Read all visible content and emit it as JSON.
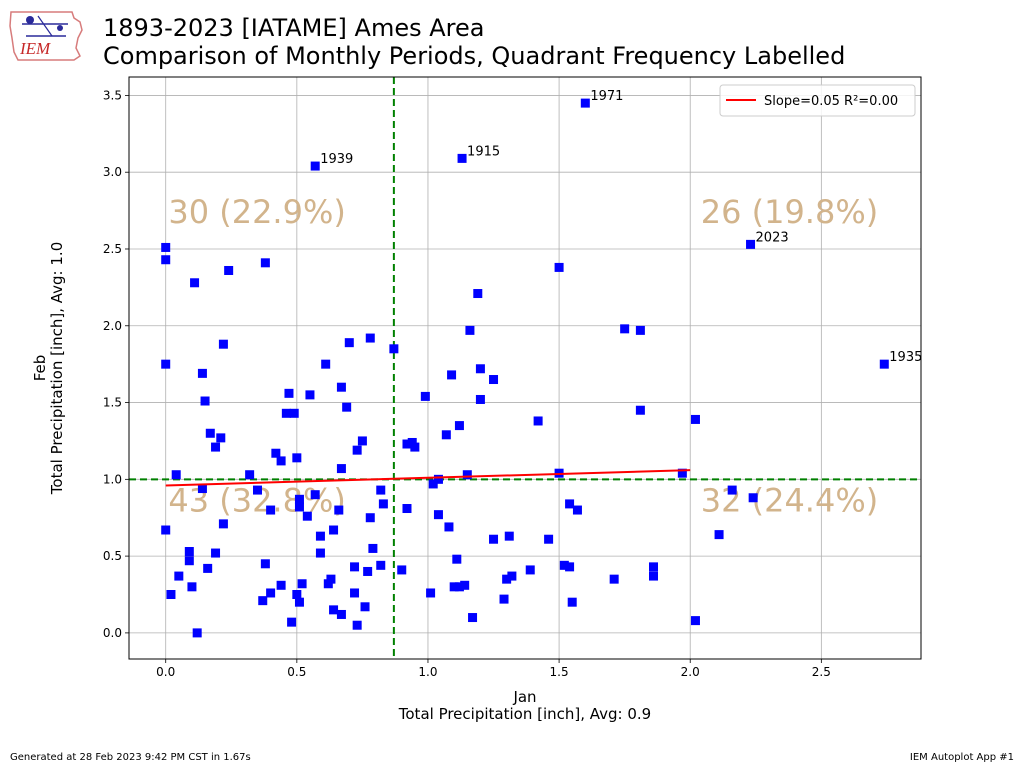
{
  "header": {
    "title_line1": "1893-2023 [IATAME] Ames Area",
    "title_line2": "Comparison of Monthly Periods, Quadrant Frequency Labelled",
    "logo_text": "IEM"
  },
  "footer": {
    "generated": "Generated at 28 Feb 2023 9:42 PM CST in 1.67s",
    "app": "IEM Autoplot App #1"
  },
  "chart_data": {
    "type": "scatter",
    "xlabel_line1": "Jan",
    "xlabel_line2": "Total Precipitation [inch], Avg: 0.9",
    "ylabel_line1": "Feb",
    "ylabel_line2": "Total Precipitation [inch], Avg: 1.0",
    "xlim": [
      -0.14,
      2.88
    ],
    "ylim": [
      -0.17,
      3.62
    ],
    "xticks": [
      "0.0",
      "0.5",
      "1.0",
      "1.5",
      "2.0",
      "2.5"
    ],
    "yticks": [
      "0.0",
      "0.5",
      "1.0",
      "1.5",
      "2.0",
      "2.5",
      "3.0",
      "3.5"
    ],
    "grid": true,
    "legend_position": "top-right",
    "legend_label": "Slope=0.05 R²=0.00",
    "x_avg": 0.87,
    "y_avg": 1.0,
    "regression": {
      "slope": 0.05,
      "x_start": 0.0,
      "x_end": 2.0,
      "y_start": 0.96,
      "y_end": 1.06
    },
    "quadrant_labels": {
      "top_left": "30 (22.9%)",
      "top_right": "26 (19.8%)",
      "bottom_left": "43 (32.8%)",
      "bottom_right": "32 (24.4%)"
    },
    "colors": {
      "points": "#0000ff",
      "regression": "#ff0000",
      "avg_lines": "#008000",
      "quadrant_text": "#d2b48c",
      "grid": "#b0b0b0"
    },
    "annotations": [
      {
        "label": "1971",
        "x": 1.6,
        "y": 3.45
      },
      {
        "label": "1939",
        "x": 0.57,
        "y": 3.04
      },
      {
        "label": "1915",
        "x": 1.13,
        "y": 3.09
      },
      {
        "label": "2023",
        "x": 2.23,
        "y": 2.53
      },
      {
        "label": "1935",
        "x": 2.74,
        "y": 1.75
      }
    ],
    "points": [
      [
        1.6,
        3.45
      ],
      [
        0.57,
        3.04
      ],
      [
        1.13,
        3.09
      ],
      [
        2.23,
        2.53
      ],
      [
        2.74,
        1.75
      ],
      [
        0.0,
        2.51
      ],
      [
        0.0,
        2.43
      ],
      [
        0.11,
        2.28
      ],
      [
        0.24,
        2.36
      ],
      [
        0.38,
        2.41
      ],
      [
        1.5,
        2.38
      ],
      [
        1.19,
        2.21
      ],
      [
        1.75,
        1.98
      ],
      [
        1.81,
        1.97
      ],
      [
        1.16,
        1.97
      ],
      [
        0.78,
        1.92
      ],
      [
        0.7,
        1.89
      ],
      [
        0.22,
        1.88
      ],
      [
        0.87,
        1.85
      ],
      [
        0.0,
        1.75
      ],
      [
        0.61,
        1.75
      ],
      [
        1.2,
        1.72
      ],
      [
        0.14,
        1.69
      ],
      [
        1.09,
        1.68
      ],
      [
        1.25,
        1.65
      ],
      [
        0.67,
        1.6
      ],
      [
        0.47,
        1.56
      ],
      [
        0.55,
        1.55
      ],
      [
        0.99,
        1.54
      ],
      [
        0.15,
        1.51
      ],
      [
        1.2,
        1.52
      ],
      [
        0.69,
        1.47
      ],
      [
        1.81,
        1.45
      ],
      [
        0.46,
        1.43
      ],
      [
        0.49,
        1.43
      ],
      [
        2.02,
        1.39
      ],
      [
        1.42,
        1.38
      ],
      [
        1.12,
        1.35
      ],
      [
        0.17,
        1.3
      ],
      [
        1.07,
        1.29
      ],
      [
        0.21,
        1.27
      ],
      [
        0.75,
        1.25
      ],
      [
        0.92,
        1.23
      ],
      [
        0.94,
        1.24
      ],
      [
        0.95,
        1.21
      ],
      [
        0.19,
        1.21
      ],
      [
        0.73,
        1.19
      ],
      [
        0.42,
        1.17
      ],
      [
        0.5,
        1.14
      ],
      [
        0.44,
        1.12
      ],
      [
        0.67,
        1.07
      ],
      [
        0.04,
        1.03
      ],
      [
        0.32,
        1.03
      ],
      [
        1.15,
        1.03
      ],
      [
        1.5,
        1.04
      ],
      [
        1.97,
        1.04
      ],
      [
        1.04,
        1.0
      ],
      [
        1.02,
        0.97
      ],
      [
        0.14,
        0.94
      ],
      [
        0.35,
        0.93
      ],
      [
        0.82,
        0.93
      ],
      [
        2.16,
        0.93
      ],
      [
        0.57,
        0.9
      ],
      [
        0.51,
        0.87
      ],
      [
        2.24,
        0.88
      ],
      [
        0.83,
        0.84
      ],
      [
        1.54,
        0.84
      ],
      [
        0.4,
        0.8
      ],
      [
        0.51,
        0.82
      ],
      [
        0.92,
        0.81
      ],
      [
        0.66,
        0.8
      ],
      [
        1.57,
        0.8
      ],
      [
        0.54,
        0.76
      ],
      [
        1.04,
        0.77
      ],
      [
        0.78,
        0.75
      ],
      [
        0.22,
        0.71
      ],
      [
        1.08,
        0.69
      ],
      [
        0.0,
        0.67
      ],
      [
        0.64,
        0.67
      ],
      [
        0.59,
        0.63
      ],
      [
        1.31,
        0.63
      ],
      [
        2.11,
        0.64
      ],
      [
        1.25,
        0.61
      ],
      [
        1.46,
        0.61
      ],
      [
        0.79,
        0.55
      ],
      [
        0.09,
        0.53
      ],
      [
        0.19,
        0.52
      ],
      [
        0.59,
        0.52
      ],
      [
        0.09,
        0.47
      ],
      [
        1.11,
        0.48
      ],
      [
        0.38,
        0.45
      ],
      [
        0.82,
        0.44
      ],
      [
        1.52,
        0.44
      ],
      [
        1.54,
        0.43
      ],
      [
        0.16,
        0.42
      ],
      [
        0.72,
        0.43
      ],
      [
        1.86,
        0.43
      ],
      [
        0.77,
        0.4
      ],
      [
        0.9,
        0.41
      ],
      [
        1.39,
        0.41
      ],
      [
        1.86,
        0.37
      ],
      [
        0.05,
        0.37
      ],
      [
        0.63,
        0.35
      ],
      [
        1.3,
        0.35
      ],
      [
        1.32,
        0.37
      ],
      [
        1.71,
        0.35
      ],
      [
        0.52,
        0.32
      ],
      [
        0.62,
        0.32
      ],
      [
        0.44,
        0.31
      ],
      [
        1.14,
        0.31
      ],
      [
        1.1,
        0.3
      ],
      [
        1.12,
        0.3
      ],
      [
        0.1,
        0.3
      ],
      [
        0.72,
        0.26
      ],
      [
        0.02,
        0.25
      ],
      [
        0.4,
        0.26
      ],
      [
        0.5,
        0.25
      ],
      [
        1.01,
        0.26
      ],
      [
        0.37,
        0.21
      ],
      [
        0.51,
        0.2
      ],
      [
        1.29,
        0.22
      ],
      [
        1.55,
        0.2
      ],
      [
        0.76,
        0.17
      ],
      [
        0.64,
        0.15
      ],
      [
        0.67,
        0.12
      ],
      [
        1.17,
        0.1
      ],
      [
        0.48,
        0.07
      ],
      [
        0.73,
        0.05
      ],
      [
        2.02,
        0.08
      ],
      [
        0.12,
        0.0
      ]
    ]
  }
}
